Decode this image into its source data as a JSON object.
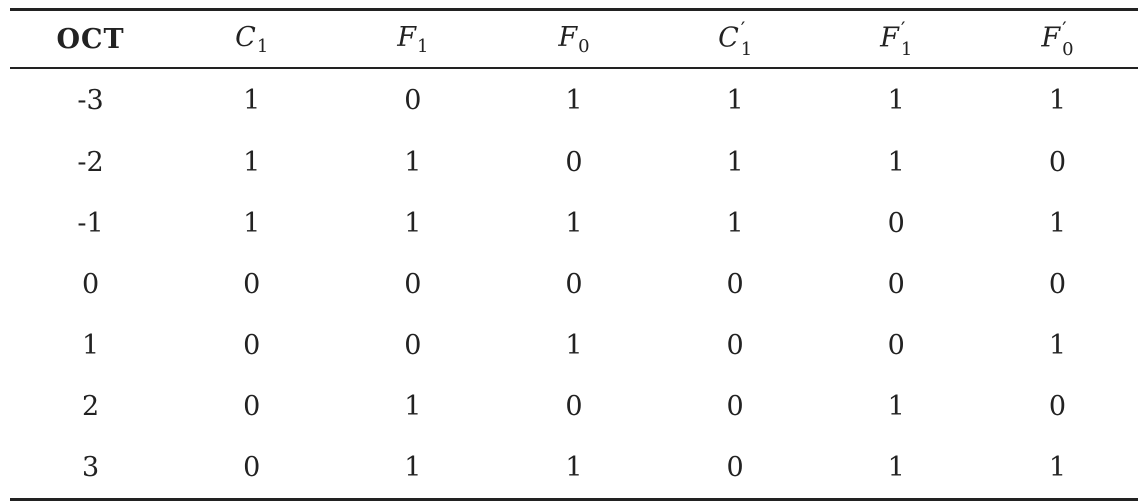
{
  "table": {
    "headers": [
      {
        "base": "OCT",
        "sub": "",
        "prime": false
      },
      {
        "base": "C",
        "sub": "1",
        "prime": false
      },
      {
        "base": "F",
        "sub": "1",
        "prime": false
      },
      {
        "base": "F",
        "sub": "0",
        "prime": false
      },
      {
        "base": "C",
        "sub": "1",
        "prime": true
      },
      {
        "base": "F",
        "sub": "1",
        "prime": true
      },
      {
        "base": "F",
        "sub": "0",
        "prime": true
      }
    ],
    "prime_mark": "′",
    "rows": [
      [
        "-3",
        "1",
        "0",
        "1",
        "1",
        "1",
        "1"
      ],
      [
        "-2",
        "1",
        "1",
        "0",
        "1",
        "1",
        "0"
      ],
      [
        "-1",
        "1",
        "1",
        "1",
        "1",
        "0",
        "1"
      ],
      [
        "0",
        "0",
        "0",
        "0",
        "0",
        "0",
        "0"
      ],
      [
        "1",
        "0",
        "0",
        "1",
        "0",
        "0",
        "1"
      ],
      [
        "2",
        "0",
        "1",
        "0",
        "0",
        "1",
        "0"
      ],
      [
        "3",
        "0",
        "1",
        "1",
        "0",
        "1",
        "1"
      ]
    ]
  }
}
